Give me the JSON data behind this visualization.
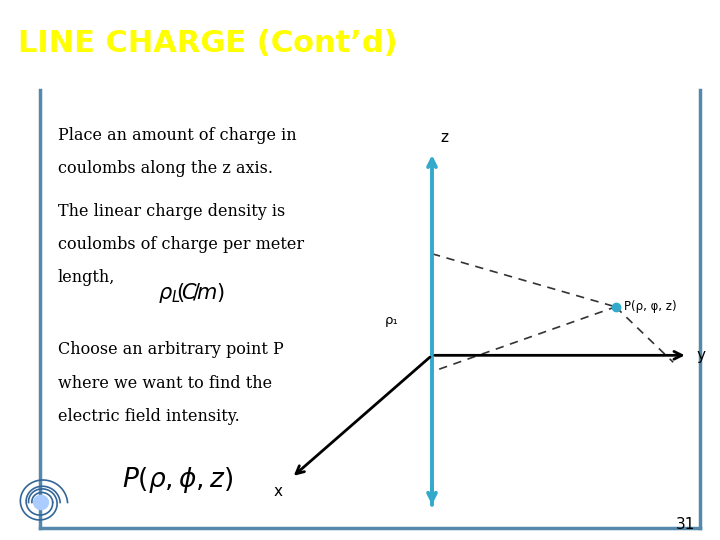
{
  "title": "LINE CHARGE (Cont’d)",
  "title_color": "#FFFF00",
  "title_bg_color": "#6666CC",
  "slide_bg_color": "#FFFFFF",
  "border_color": "#5588AA",
  "text1_lines": [
    "Place an amount of charge in",
    "coulombs along the z axis."
  ],
  "text2_lines": [
    "The linear charge density is",
    "coulombs of charge per meter",
    "length,"
  ],
  "text3_lines": [
    "Choose an arbitrary point P",
    "where we want to find the",
    "electric field intensity."
  ],
  "page_num": "31",
  "axis_color": "#000000",
  "z_axis_color": "#33AACC",
  "point_color": "#33AACC",
  "point_label": "P(ρ, φ, z)",
  "rho_label": "ρ₁",
  "ox": 0.6,
  "oy": 0.4
}
